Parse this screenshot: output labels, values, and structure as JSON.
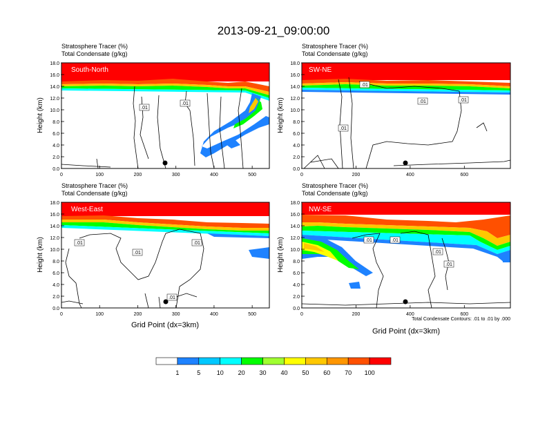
{
  "title": "2013-09-21_09:00:00",
  "colors": {
    "strat_100": "#ff0000",
    "strat_70": "#ff5000",
    "strat_60": "#ff9600",
    "strat_50": "#ffc800",
    "strat_40": "#ffff00",
    "strat_30": "#a0ff30",
    "strat_20": "#00ff00",
    "strat_10": "#00e68c",
    "strat_5": "#00ffff",
    "strat_1": "#1e82ff",
    "contour": "#000000"
  },
  "panels": [
    {
      "id": "south-north",
      "label": "South-North",
      "subtitle1": "Stratosphere Tracer   (%)",
      "subtitle2": "Total Condensate   (g/kg)",
      "ylabel": "Height (km)",
      "xlabel": "",
      "xlim": [
        0,
        545
      ],
      "xticks": [
        0,
        100,
        200,
        300,
        400,
        500
      ],
      "yticks": [
        "0.0",
        "2.0",
        "4.0",
        "6.0",
        "8.0",
        "10.0",
        "12.0",
        "14.0",
        "16.0",
        "18.0"
      ],
      "contour_labels": [
        ".01",
        ".01"
      ],
      "marker_x": 275
    },
    {
      "id": "sw-ne",
      "label": "SW-NE",
      "subtitle1": "Stratosphere Tracer   (%)",
      "subtitle2": "Total Condensate   (g/kg)",
      "ylabel": "Height (km)",
      "xlabel": "",
      "xlim": [
        0,
        770
      ],
      "xticks": [
        0,
        200,
        400,
        600
      ],
      "yticks": [
        "0.0",
        "2.0",
        "4.0",
        "6.0",
        "8.0",
        "10.0",
        "12.0",
        "14.0",
        "16.0",
        "18.0"
      ],
      "contour_labels": [
        ".01",
        ".01",
        ".01",
        ".01"
      ],
      "marker_x": 385
    },
    {
      "id": "west-east",
      "label": "West-East",
      "subtitle1": "Stratosphere Tracer   (%)",
      "subtitle2": "Total Condensate   (g/kg)",
      "ylabel": "Height (km)",
      "xlabel": "Grid Point (dx=3km)",
      "xlim": [
        0,
        545
      ],
      "xticks": [
        0,
        100,
        200,
        300,
        400,
        500
      ],
      "yticks": [
        "0.0",
        "2.0",
        "4.0",
        "6.0",
        "8.0",
        "10.0",
        "12.0",
        "14.0",
        "16.0",
        "18.0"
      ],
      "contour_labels": [
        ".01",
        ".01",
        ".01",
        ".01"
      ],
      "marker_x": 275
    },
    {
      "id": "nw-se",
      "label": "NW-SE",
      "subtitle1": "Stratosphere Tracer   (%)",
      "subtitle2": "Total Condensate   (g/kg)",
      "ylabel": "Height (km)",
      "xlabel": "Grid Point (dx=3km)",
      "xlim": [
        0,
        770
      ],
      "xticks": [
        0,
        200,
        400,
        600
      ],
      "yticks": [
        "0.0",
        "2.0",
        "4.0",
        "6.0",
        "8.0",
        "10.0",
        "12.0",
        "14.0",
        "16.0",
        "18.0"
      ],
      "contour_labels": [
        ".01",
        ".01",
        ".01",
        ".01"
      ],
      "marker_x": 385,
      "footnote": "Total Condensate Contours: .01 to .01 by .000"
    }
  ],
  "colorbar": {
    "labels": [
      "1",
      "5",
      "10",
      "20",
      "30",
      "40",
      "50",
      "60",
      "70",
      "100"
    ]
  },
  "chart_data": {
    "type": "heatmap",
    "title": "2013-09-21_09:00:00",
    "fields": [
      "Stratosphere Tracer (%) [filled]",
      "Total Condensate (g/kg) [contours]"
    ],
    "contour_level": 0.01,
    "ylim": [
      0,
      18
    ],
    "ylabel": "Height (km)",
    "xlabel": "Grid Point (dx=3km)",
    "colorbar_levels": [
      1,
      5,
      10,
      20,
      30,
      40,
      50,
      60,
      70,
      100
    ],
    "colorbar_colors": [
      "#ffffff",
      "#1e82ff",
      "#00c8ff",
      "#00ffff",
      "#00ff00",
      "#a0ff30",
      "#ffff00",
      "#ffc800",
      "#ff9600",
      "#ff5000",
      "#ff0000"
    ],
    "panels": [
      {
        "name": "South-North",
        "xlim": [
          0,
          545
        ],
        "tropopause_km": 14.5
      },
      {
        "name": "SW-NE",
        "xlim": [
          0,
          770
        ],
        "tropopause_km": 14.2
      },
      {
        "name": "West-East",
        "xlim": [
          0,
          545
        ],
        "tropopause_km": 14.8
      },
      {
        "name": "NW-SE",
        "xlim": [
          0,
          770
        ],
        "tropopause_km": 14.5
      }
    ]
  }
}
